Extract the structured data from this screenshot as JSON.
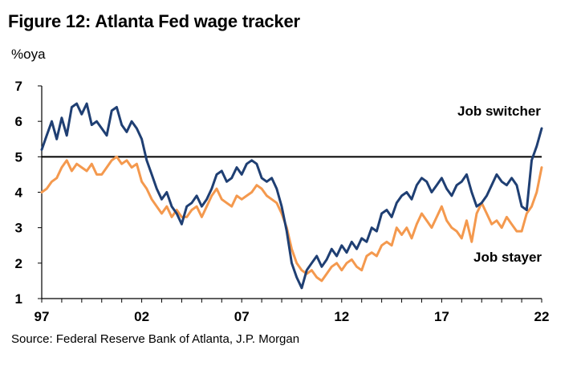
{
  "title": "Figure 12: Atlanta Fed wage tracker",
  "unit_label": "%oya",
  "source": "Source: Federal Reserve Bank of Atlanta, J.P. Morgan",
  "colors": {
    "job_switcher": "#1F3F73",
    "job_stayer": "#F4994E",
    "reference_line": "#000000",
    "axis": "#000000"
  },
  "chart_data": {
    "type": "line",
    "xlim": [
      1997,
      2022
    ],
    "ylim": [
      1,
      7
    ],
    "x_ticks": [
      1997,
      2002,
      2007,
      2012,
      2017,
      2022
    ],
    "x_tick_labels": [
      "97",
      "02",
      "07",
      "12",
      "17",
      "22"
    ],
    "y_ticks": [
      1,
      2,
      3,
      4,
      5,
      6,
      7
    ],
    "y_tick_labels": [
      "1",
      "2",
      "3",
      "4",
      "5",
      "6",
      "7"
    ],
    "reference_line": {
      "y": 5
    },
    "series": [
      {
        "key": "job_switcher",
        "name": "Job switcher",
        "color": "#1F3F73",
        "x": [
          1997.0,
          1997.25,
          1997.5,
          1997.75,
          1998.0,
          1998.25,
          1998.5,
          1998.75,
          1999.0,
          1999.25,
          1999.5,
          1999.75,
          2000.0,
          2000.25,
          2000.5,
          2000.75,
          2001.0,
          2001.25,
          2001.5,
          2001.75,
          2002.0,
          2002.25,
          2002.5,
          2002.75,
          2003.0,
          2003.25,
          2003.5,
          2003.75,
          2004.0,
          2004.25,
          2004.5,
          2004.75,
          2005.0,
          2005.25,
          2005.5,
          2005.75,
          2006.0,
          2006.25,
          2006.5,
          2006.75,
          2007.0,
          2007.25,
          2007.5,
          2007.75,
          2008.0,
          2008.25,
          2008.5,
          2008.75,
          2009.0,
          2009.25,
          2009.5,
          2009.75,
          2010.0,
          2010.25,
          2010.5,
          2010.75,
          2011.0,
          2011.25,
          2011.5,
          2011.75,
          2012.0,
          2012.25,
          2012.5,
          2012.75,
          2013.0,
          2013.25,
          2013.5,
          2013.75,
          2014.0,
          2014.25,
          2014.5,
          2014.75,
          2015.0,
          2015.25,
          2015.5,
          2015.75,
          2016.0,
          2016.25,
          2016.5,
          2016.75,
          2017.0,
          2017.25,
          2017.5,
          2017.75,
          2018.0,
          2018.25,
          2018.5,
          2018.75,
          2019.0,
          2019.25,
          2019.5,
          2019.75,
          2020.0,
          2020.25,
          2020.5,
          2020.75,
          2021.0,
          2021.25,
          2021.5,
          2021.75,
          2022.0
        ],
        "values": [
          5.2,
          5.6,
          6.0,
          5.5,
          6.1,
          5.6,
          6.4,
          6.5,
          6.2,
          6.5,
          5.9,
          6.0,
          5.8,
          5.6,
          6.3,
          6.4,
          5.9,
          5.7,
          6.0,
          5.8,
          5.5,
          4.9,
          4.5,
          4.1,
          3.8,
          4.0,
          3.6,
          3.4,
          3.1,
          3.6,
          3.7,
          3.9,
          3.6,
          3.8,
          4.1,
          4.5,
          4.6,
          4.3,
          4.4,
          4.7,
          4.5,
          4.8,
          4.9,
          4.8,
          4.4,
          4.3,
          4.4,
          4.1,
          3.6,
          2.9,
          2.0,
          1.6,
          1.3,
          1.8,
          2.0,
          2.2,
          1.9,
          2.1,
          2.4,
          2.2,
          2.5,
          2.3,
          2.6,
          2.4,
          2.7,
          2.6,
          3.0,
          2.9,
          3.4,
          3.5,
          3.3,
          3.7,
          3.9,
          4.0,
          3.8,
          4.2,
          4.4,
          4.3,
          4.0,
          4.2,
          4.4,
          4.1,
          3.9,
          4.2,
          4.3,
          4.5,
          4.0,
          3.6,
          3.7,
          3.9,
          4.2,
          4.5,
          4.3,
          4.2,
          4.4,
          4.2,
          3.6,
          3.5,
          4.9,
          5.3,
          5.8
        ]
      },
      {
        "key": "job_stayer",
        "name": "Job stayer",
        "color": "#F4994E",
        "x": [
          1997.0,
          1997.25,
          1997.5,
          1997.75,
          1998.0,
          1998.25,
          1998.5,
          1998.75,
          1999.0,
          1999.25,
          1999.5,
          1999.75,
          2000.0,
          2000.25,
          2000.5,
          2000.75,
          2001.0,
          2001.25,
          2001.5,
          2001.75,
          2002.0,
          2002.25,
          2002.5,
          2002.75,
          2003.0,
          2003.25,
          2003.5,
          2003.75,
          2004.0,
          2004.25,
          2004.5,
          2004.75,
          2005.0,
          2005.25,
          2005.5,
          2005.75,
          2006.0,
          2006.25,
          2006.5,
          2006.75,
          2007.0,
          2007.25,
          2007.5,
          2007.75,
          2008.0,
          2008.25,
          2008.5,
          2008.75,
          2009.0,
          2009.25,
          2009.5,
          2009.75,
          2010.0,
          2010.25,
          2010.5,
          2010.75,
          2011.0,
          2011.25,
          2011.5,
          2011.75,
          2012.0,
          2012.25,
          2012.5,
          2012.75,
          2013.0,
          2013.25,
          2013.5,
          2013.75,
          2014.0,
          2014.25,
          2014.5,
          2014.75,
          2015.0,
          2015.25,
          2015.5,
          2015.75,
          2016.0,
          2016.25,
          2016.5,
          2016.75,
          2017.0,
          2017.25,
          2017.5,
          2017.75,
          2018.0,
          2018.25,
          2018.5,
          2018.75,
          2019.0,
          2019.25,
          2019.5,
          2019.75,
          2020.0,
          2020.25,
          2020.5,
          2020.75,
          2021.0,
          2021.25,
          2021.5,
          2021.75,
          2022.0
        ],
        "values": [
          4.0,
          4.1,
          4.3,
          4.4,
          4.7,
          4.9,
          4.6,
          4.8,
          4.7,
          4.6,
          4.8,
          4.5,
          4.5,
          4.7,
          4.9,
          5.0,
          4.8,
          4.9,
          4.7,
          4.8,
          4.3,
          4.1,
          3.8,
          3.6,
          3.4,
          3.6,
          3.3,
          3.5,
          3.3,
          3.3,
          3.5,
          3.6,
          3.3,
          3.6,
          3.9,
          4.1,
          3.8,
          3.7,
          3.6,
          3.9,
          3.8,
          3.9,
          4.0,
          4.2,
          4.1,
          3.9,
          3.8,
          3.7,
          3.4,
          3.0,
          2.4,
          2.0,
          1.8,
          1.7,
          1.8,
          1.6,
          1.5,
          1.7,
          1.9,
          2.0,
          1.8,
          2.0,
          2.1,
          1.9,
          1.8,
          2.2,
          2.3,
          2.2,
          2.5,
          2.6,
          2.5,
          3.0,
          2.8,
          3.0,
          2.7,
          3.1,
          3.4,
          3.2,
          3.0,
          3.3,
          3.6,
          3.2,
          3.0,
          2.9,
          2.7,
          3.2,
          2.6,
          3.4,
          3.7,
          3.4,
          3.1,
          3.2,
          3.0,
          3.3,
          3.1,
          2.9,
          2.9,
          3.4,
          3.6,
          4.0,
          4.7
        ]
      }
    ],
    "annotations": [
      {
        "series": "job_switcher",
        "text": "Job switcher"
      },
      {
        "series": "job_stayer",
        "text": "Job stayer"
      }
    ],
    "grid": false,
    "legend": "none"
  }
}
